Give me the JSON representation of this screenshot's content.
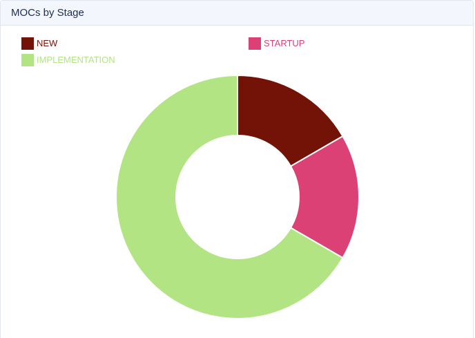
{
  "card": {
    "title": "MOCs by Stage"
  },
  "chart_data": {
    "type": "pie",
    "donut": true,
    "categories": [
      "NEW",
      "STARTUP",
      "IMPLEMENTATION"
    ],
    "values": [
      1,
      1,
      4
    ],
    "colors": [
      "#731207",
      "#db4175",
      "#b2e483"
    ],
    "legend": {
      "placement": "top-left",
      "text_colors": [
        "#731207",
        "#db4175",
        "#b2e483"
      ]
    },
    "title": ""
  }
}
